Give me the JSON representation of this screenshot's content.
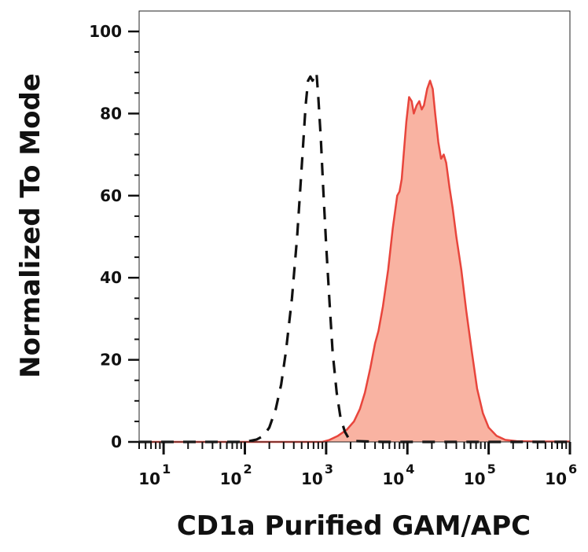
{
  "chart_data": {
    "type": "area",
    "title": "",
    "xlabel": "CD1a Purified GAM/APC",
    "ylabel": "Normalized To Mode",
    "x_scale": "log",
    "xlim": [
      5,
      1000000
    ],
    "ylim": [
      0,
      100
    ],
    "grid": false,
    "legend": "none",
    "y_ticks": [
      {
        "value": 0,
        "label": "0"
      },
      {
        "value": 20,
        "label": "20"
      },
      {
        "value": 40,
        "label": "40"
      },
      {
        "value": 60,
        "label": "60"
      },
      {
        "value": 80,
        "label": "80"
      },
      {
        "value": 100,
        "label": "100"
      }
    ],
    "x_ticks": [
      {
        "value": 10,
        "base": "10",
        "exp": "1"
      },
      {
        "value": 100,
        "base": "10",
        "exp": "2"
      },
      {
        "value": 1000,
        "base": "10",
        "exp": "3"
      },
      {
        "value": 10000,
        "base": "10",
        "exp": "4"
      },
      {
        "value": 100000,
        "base": "10",
        "exp": "5"
      },
      {
        "value": 1000000,
        "base": "10",
        "exp": "6"
      }
    ],
    "series": [
      {
        "style": "dashed-outline",
        "color": "#111111",
        "points": [
          [
            5,
            0
          ],
          [
            100,
            0
          ],
          [
            140,
            0.6
          ],
          [
            170,
            1.5
          ],
          [
            200,
            3.5
          ],
          [
            240,
            8
          ],
          [
            280,
            14
          ],
          [
            320,
            22
          ],
          [
            380,
            35
          ],
          [
            440,
            50
          ],
          [
            500,
            67
          ],
          [
            560,
            82
          ],
          [
            600,
            88
          ],
          [
            640,
            89
          ],
          [
            680,
            88
          ],
          [
            720,
            89
          ],
          [
            760,
            90
          ],
          [
            800,
            84
          ],
          [
            860,
            74
          ],
          [
            920,
            62
          ],
          [
            1000,
            48
          ],
          [
            1100,
            34
          ],
          [
            1200,
            22
          ],
          [
            1350,
            12
          ],
          [
            1500,
            6
          ],
          [
            1700,
            2.5
          ],
          [
            1900,
            0.8
          ],
          [
            2300,
            0.2
          ],
          [
            5000,
            0
          ],
          [
            1000000,
            0
          ]
        ]
      },
      {
        "style": "filled",
        "color": "#e8453c",
        "fill": "#f9b3a2",
        "points": [
          [
            5,
            0
          ],
          [
            900,
            0
          ],
          [
            1100,
            0.5
          ],
          [
            1400,
            1.5
          ],
          [
            1800,
            3
          ],
          [
            2200,
            5
          ],
          [
            2600,
            8
          ],
          [
            3000,
            12
          ],
          [
            3500,
            18
          ],
          [
            4000,
            24
          ],
          [
            4400,
            27
          ],
          [
            5000,
            33
          ],
          [
            5800,
            42
          ],
          [
            6600,
            52
          ],
          [
            7500,
            60
          ],
          [
            8000,
            61
          ],
          [
            8500,
            64
          ],
          [
            9000,
            70
          ],
          [
            9700,
            78
          ],
          [
            10500,
            84
          ],
          [
            11300,
            83
          ],
          [
            12000,
            80
          ],
          [
            13000,
            82
          ],
          [
            14000,
            83
          ],
          [
            15000,
            81
          ],
          [
            16000,
            82
          ],
          [
            17500,
            86
          ],
          [
            19000,
            88
          ],
          [
            20500,
            86
          ],
          [
            22000,
            80
          ],
          [
            24000,
            73
          ],
          [
            26000,
            69
          ],
          [
            28000,
            70
          ],
          [
            30000,
            68
          ],
          [
            33000,
            62
          ],
          [
            36000,
            57
          ],
          [
            40000,
            50
          ],
          [
            46000,
            42
          ],
          [
            53000,
            32
          ],
          [
            62000,
            22
          ],
          [
            72000,
            13
          ],
          [
            85000,
            7
          ],
          [
            100000,
            3.5
          ],
          [
            125000,
            1.5
          ],
          [
            160000,
            0.5
          ],
          [
            220000,
            0.2
          ],
          [
            400000,
            0.1
          ],
          [
            1000000,
            0.1
          ]
        ]
      }
    ]
  }
}
